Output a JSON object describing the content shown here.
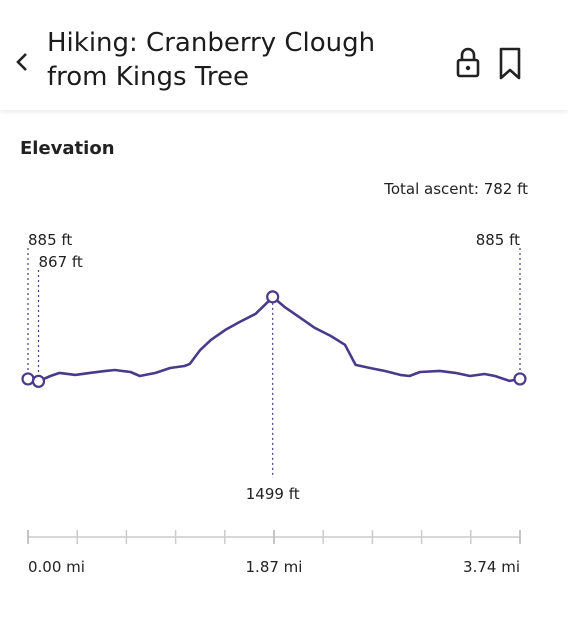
{
  "header": {
    "title": "Hiking: Cranberry Clough from Kings Tree"
  },
  "section": {
    "title": "Elevation",
    "total_ascent": "Total ascent: 782 ft"
  },
  "chart_data": {
    "type": "line",
    "color": "#4a3a8a",
    "x": [
      0,
      0.08,
      0.17,
      0.24,
      0.36,
      0.47,
      0.59,
      0.66,
      0.78,
      0.85,
      0.97,
      1.08,
      1.19,
      1.23,
      1.31,
      1.39,
      1.5,
      1.61,
      1.73,
      1.8,
      1.86,
      1.95,
      2.07,
      2.18,
      2.3,
      2.41,
      2.49,
      2.6,
      2.71,
      2.83,
      2.9,
      2.98,
      3.13,
      3.25,
      3.36,
      3.47,
      3.55,
      3.66,
      3.74
    ],
    "values": [
      885,
      867,
      907,
      930,
      915,
      930,
      945,
      952,
      937,
      907,
      930,
      967,
      982,
      997,
      1102,
      1177,
      1252,
      1312,
      1372,
      1439,
      1499,
      1424,
      1342,
      1267,
      1207,
      1140,
      990,
      967,
      945,
      915,
      907,
      937,
      945,
      930,
      907,
      922,
      907,
      870,
      885
    ],
    "xlim": [
      0,
      3.74
    ],
    "ylim": [
      600,
      1700
    ],
    "xticks": [
      {
        "value": 0,
        "label": "0.00 mi"
      },
      {
        "value": 1.87,
        "label": "1.87 mi"
      },
      {
        "value": 3.74,
        "label": "3.74 mi"
      }
    ],
    "annotations": [
      {
        "label": "885 ft",
        "x": 0,
        "value": 885
      },
      {
        "label": "867 ft",
        "x": 0.08,
        "value": 867
      },
      {
        "label": "1499 ft",
        "x": 1.86,
        "value": 1499
      },
      {
        "label": "885 ft",
        "x": 3.74,
        "value": 885
      }
    ]
  }
}
